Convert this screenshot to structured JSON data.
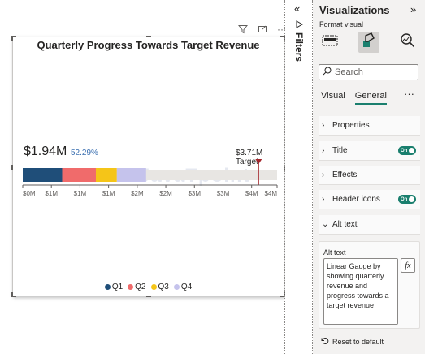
{
  "visual_toolbar": {
    "icons": [
      "filter-icon",
      "focus-mode-icon",
      "more-options-icon"
    ],
    "more_label": "···"
  },
  "chart_data": {
    "type": "bar",
    "title": "Quarterly Progress Towards Target Revenue",
    "value_label": "$1.94M",
    "percent_label": "52.29%",
    "target_label": "$3.71M Target",
    "value": 1.94,
    "target": 3.71,
    "percent": 52.29,
    "xlim": [
      0,
      4
    ],
    "ticks": [
      "$0M",
      "$1M",
      "$1M",
      "$1M",
      "$2M",
      "$2M",
      "$3M",
      "$3M",
      "$4M",
      "$4M"
    ],
    "tick_values": [
      0,
      0.45,
      0.9,
      1.35,
      1.8,
      2.25,
      2.7,
      3.15,
      3.6,
      4.0
    ],
    "series": [
      {
        "name": "Q1",
        "start": 0.0,
        "end": 0.62,
        "color": "#1f4e79"
      },
      {
        "name": "Q2",
        "start": 0.62,
        "end": 1.15,
        "color": "#f06b6b"
      },
      {
        "name": "Q3",
        "start": 1.15,
        "end": 1.48,
        "color": "#f5c518"
      },
      {
        "name": "Q4",
        "start": 1.48,
        "end": 1.94,
        "color": "#c5c3ec"
      }
    ],
    "background_color": "#e8e6e3",
    "target_color": "#a4262c",
    "legend_position": "bottom"
  },
  "watermark": "JavaTpoint",
  "filters": {
    "label": "Filters",
    "collapse_icon": "«"
  },
  "viz": {
    "title": "Visualizations",
    "expand_icon": "»",
    "subtitle": "Format visual",
    "search_placeholder": "Search",
    "tabs": [
      {
        "label": "Visual"
      },
      {
        "label": "General"
      }
    ],
    "more": "···",
    "sections": [
      {
        "label": "Properties",
        "toggle": ""
      },
      {
        "label": "Title",
        "toggle": "On"
      },
      {
        "label": "Effects",
        "toggle": ""
      },
      {
        "label": "Header icons",
        "toggle": "On"
      },
      {
        "label": "Alt text",
        "toggle": ""
      }
    ],
    "alt_text_label": "Alt text",
    "alt_text_value": "Linear Gauge by showing quarterly revenue and progress towards a target revenue",
    "fx_label": "fx",
    "reset_label": "Reset to default"
  }
}
